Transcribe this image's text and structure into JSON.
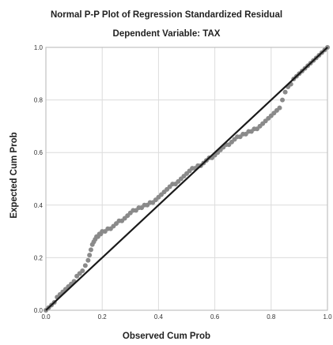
{
  "colors": {
    "points": "#8a8a8a",
    "reference_line": "#1a1a1a",
    "gridlines": "#dcdcdc",
    "frame": "#b5b5b5"
  },
  "chart_data": {
    "type": "scatter",
    "title": "Normal P-P Plot of Regression Standardized Residual",
    "subtitle": "Dependent Variable: TAX",
    "xlabel": "Observed Cum Prob",
    "ylabel": "Expected Cum Prob",
    "xlim": [
      0.0,
      1.0
    ],
    "ylim": [
      0.0,
      1.0
    ],
    "x_ticks": [
      0.0,
      0.2,
      0.4,
      0.6,
      0.8,
      1.0
    ],
    "y_ticks": [
      0.0,
      0.2,
      0.4,
      0.6,
      0.8,
      1.0
    ],
    "x_tick_labels": [
      "0.0",
      "0.2",
      "0.4",
      "0.6",
      "0.8",
      "1.0"
    ],
    "y_tick_labels": [
      "0.0",
      "0.2",
      "0.4",
      "0.6",
      "0.8",
      "1.0"
    ],
    "grid": true,
    "reference_line": {
      "x": [
        0.0,
        1.0
      ],
      "y": [
        0.0,
        1.0
      ]
    },
    "series": [
      {
        "x": [
          0.0,
          0.01,
          0.02,
          0.03,
          0.04,
          0.05,
          0.06,
          0.07,
          0.08,
          0.09,
          0.1,
          0.11,
          0.12,
          0.13,
          0.14,
          0.15,
          0.155,
          0.16,
          0.165,
          0.17,
          0.175,
          0.18,
          0.185,
          0.19,
          0.195,
          0.2,
          0.21,
          0.22,
          0.23,
          0.24,
          0.25,
          0.26,
          0.27,
          0.28,
          0.29,
          0.3,
          0.31,
          0.32,
          0.33,
          0.34,
          0.35,
          0.36,
          0.37,
          0.38,
          0.39,
          0.4,
          0.41,
          0.42,
          0.43,
          0.44,
          0.45,
          0.46,
          0.47,
          0.48,
          0.49,
          0.5,
          0.51,
          0.52,
          0.53,
          0.54,
          0.55,
          0.56,
          0.57,
          0.58,
          0.59,
          0.6,
          0.61,
          0.62,
          0.63,
          0.64,
          0.65,
          0.66,
          0.67,
          0.68,
          0.69,
          0.7,
          0.71,
          0.72,
          0.73,
          0.74,
          0.75,
          0.76,
          0.77,
          0.78,
          0.79,
          0.8,
          0.81,
          0.82,
          0.83,
          0.84,
          0.85,
          0.86,
          0.87,
          0.88,
          0.89,
          0.9,
          0.91,
          0.92,
          0.93,
          0.94,
          0.95,
          0.96,
          0.97,
          0.98,
          0.99,
          1.0
        ],
        "y": [
          0.0,
          0.01,
          0.02,
          0.03,
          0.05,
          0.06,
          0.07,
          0.08,
          0.09,
          0.1,
          0.11,
          0.13,
          0.14,
          0.15,
          0.17,
          0.19,
          0.21,
          0.23,
          0.25,
          0.26,
          0.27,
          0.28,
          0.28,
          0.29,
          0.29,
          0.3,
          0.3,
          0.31,
          0.31,
          0.32,
          0.33,
          0.34,
          0.34,
          0.35,
          0.36,
          0.37,
          0.38,
          0.38,
          0.39,
          0.39,
          0.4,
          0.4,
          0.41,
          0.41,
          0.42,
          0.43,
          0.44,
          0.45,
          0.46,
          0.47,
          0.48,
          0.48,
          0.49,
          0.5,
          0.51,
          0.52,
          0.53,
          0.54,
          0.54,
          0.55,
          0.55,
          0.56,
          0.57,
          0.58,
          0.58,
          0.59,
          0.6,
          0.61,
          0.62,
          0.63,
          0.63,
          0.64,
          0.65,
          0.66,
          0.66,
          0.67,
          0.67,
          0.68,
          0.68,
          0.69,
          0.69,
          0.7,
          0.71,
          0.72,
          0.73,
          0.74,
          0.75,
          0.76,
          0.77,
          0.8,
          0.83,
          0.85,
          0.86,
          0.88,
          0.89,
          0.9,
          0.91,
          0.92,
          0.93,
          0.94,
          0.95,
          0.96,
          0.97,
          0.98,
          0.99,
          1.0
        ]
      }
    ]
  }
}
